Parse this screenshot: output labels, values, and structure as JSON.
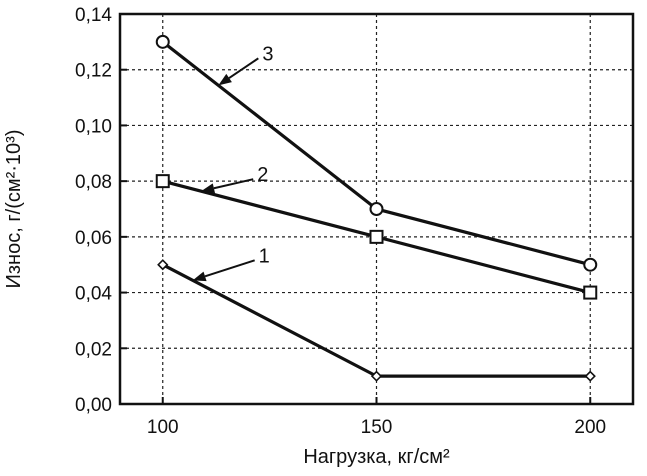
{
  "chart_data": {
    "type": "line",
    "title": "",
    "xlabel": "Нагрузка, кг/см²",
    "ylabel": "Износ, г/(см²·10³)",
    "x": [
      100,
      150,
      200
    ],
    "xlim": [
      90,
      210
    ],
    "ylim": [
      0,
      0.14
    ],
    "x_ticks": [
      100,
      150,
      200
    ],
    "x_tick_labels": [
      "100",
      "150",
      "200"
    ],
    "y_ticks": [
      0,
      0.02,
      0.04,
      0.06,
      0.08,
      0.1,
      0.12,
      0.14
    ],
    "y_tick_labels": [
      "0,00",
      "0,02",
      "0,04",
      "0,06",
      "0,08",
      "0,10",
      "0,12",
      "0,14"
    ],
    "grid": true,
    "series": [
      {
        "label": "1",
        "marker": "diamond",
        "values": [
          0.05,
          0.01,
          0.01
        ]
      },
      {
        "label": "2",
        "marker": "square",
        "values": [
          0.08,
          0.06,
          0.04
        ]
      },
      {
        "label": "3",
        "marker": "circle",
        "values": [
          0.13,
          0.07,
          0.05
        ]
      }
    ],
    "line_color": "#111111",
    "grid_color": "#222222"
  }
}
